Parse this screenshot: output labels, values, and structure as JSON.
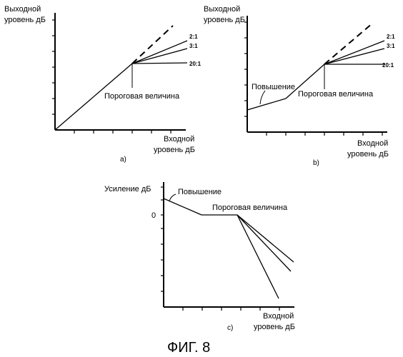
{
  "panel_a": {
    "y_label_1": "Выходной",
    "y_label_2": "уровень дБ",
    "x_label_1": "Входной",
    "x_label_2": "уровень дБ",
    "ratios": [
      "2:1",
      "3:1",
      "20:1"
    ],
    "threshold_label": "Пороговая величина",
    "panel_label": "a)"
  },
  "panel_b": {
    "y_label_1": "Выходной",
    "y_label_2": "уровень дБ",
    "x_label_1": "Входной",
    "x_label_2": "уровень дБ",
    "ratios": [
      "2:1",
      "3:1",
      "20:1"
    ],
    "boost_label": "Повышение",
    "threshold_label": "Пороговая величина",
    "panel_label": "b)"
  },
  "panel_c": {
    "y_label": "Усиление дБ",
    "zero_label": "0",
    "boost_label": "Повышение",
    "threshold_label": "Пороговая величина",
    "x_label_1": "Входной",
    "x_label_2": "уровень дБ",
    "panel_label": "c)"
  },
  "figure_caption": "ФИГ. 8"
}
